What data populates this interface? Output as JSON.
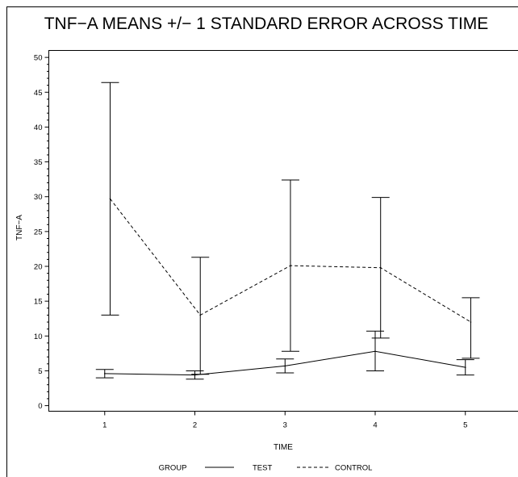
{
  "chart_data": {
    "type": "line",
    "title": "TNF−A MEANS +/− 1 STANDARD ERROR ACROSS TIME",
    "xlabel": "TIME",
    "ylabel": "TNF−A",
    "x": [
      1,
      2,
      3,
      4,
      5
    ],
    "x_ticks": [
      "1",
      "2",
      "3",
      "4",
      "5"
    ],
    "y_ticks": [
      "0",
      "5",
      "10",
      "15",
      "20",
      "25",
      "30",
      "35",
      "40",
      "45",
      "50"
    ],
    "ylim": [
      -0.8,
      51
    ],
    "xlim": [
      0.38,
      5.66
    ],
    "grid": false,
    "legend_position": "bottom",
    "legend_title": "GROUP",
    "series": [
      {
        "name": "TEST",
        "style": "solid",
        "color": "#000000",
        "values": [
          4.6,
          4.4,
          5.7,
          7.8,
          5.5
        ],
        "lower": [
          4.0,
          3.8,
          4.7,
          5.0,
          4.4
        ],
        "upper": [
          5.2,
          5.0,
          6.7,
          10.7,
          6.6
        ]
      },
      {
        "name": "CONTROL",
        "style": "dashed",
        "color": "#000000",
        "values": [
          29.7,
          13.0,
          20.1,
          19.8,
          12.0
        ],
        "lower": [
          13.0,
          4.5,
          7.8,
          9.7,
          6.8
        ],
        "upper": [
          46.4,
          21.3,
          32.4,
          29.9,
          15.5
        ]
      }
    ]
  }
}
